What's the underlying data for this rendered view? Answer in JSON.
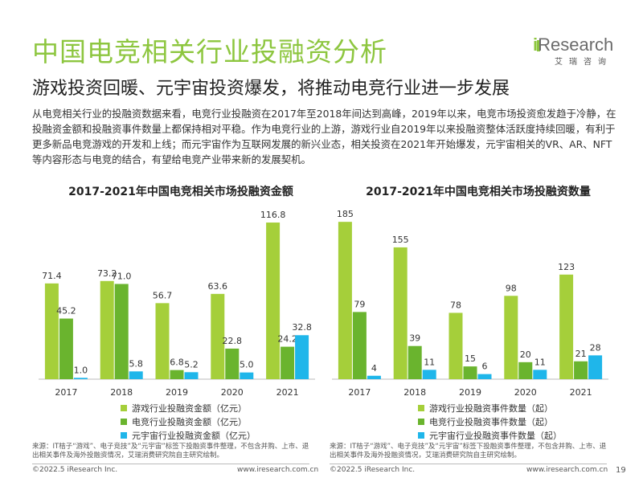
{
  "header": {
    "title": "中国电竞相关行业投融资分析",
    "subtitle": "游戏投资回暖、元宇宙投资爆发，将推动电竞行业进一步发展"
  },
  "logo": {
    "brand_i": "i",
    "brand_rest": "Research",
    "tagline": "艾瑞咨询"
  },
  "body_text": "从电竞相关行业的投融资数据来看，电竞行业投融资在2017年至2018年间达到高峰，2019年以来，电竞市场投资愈发趋于冷静，在投融资金额和投融资事件数量上都保持相对平稳。作为电竞行业的上游，游戏行业自2019年以来投融资整体活跃度持续回暖，有利于更多新品电竞游戏的开发和上线；而元宇宙作为互联网发展的新兴业态，相关投资在2021年开始爆发，元宇宙相关的VR、AR、NFT等内容形态与电竞的结合，有望给电竞产业带来新的发展契机。",
  "colors": {
    "green_light": "#a5cf3a",
    "green_dark": "#6ab42e",
    "cyan": "#1fb6ea",
    "title_green": "#8dc63f"
  },
  "chart_data": [
    {
      "type": "bar",
      "title": "2017-2021年中国电竞相关市场投融资金额",
      "categories": [
        "2017",
        "2018",
        "2019",
        "2020",
        "2021"
      ],
      "series": [
        {
          "name": "游戏行业投融资金额（亿元）",
          "values": [
            71.4,
            73.2,
            56.7,
            63.6,
            116.8
          ],
          "labels": [
            "71.4",
            "73.2",
            "56.7",
            "63.6",
            "116.8"
          ]
        },
        {
          "name": "电竞行业投融资金额（亿元）",
          "values": [
            45.2,
            71.0,
            6.8,
            22.8,
            24.2
          ],
          "labels": [
            "45.2",
            "71.0",
            "6.8",
            "22.8",
            "24.2"
          ]
        },
        {
          "name": "元宇宙行业投融资金额（亿元）",
          "values": [
            1.0,
            5.8,
            5.2,
            5.0,
            32.8
          ],
          "labels": [
            "1.0",
            "5.8",
            "5.2",
            "5.0",
            "32.8"
          ]
        }
      ],
      "ylim": [
        0,
        130
      ]
    },
    {
      "type": "bar",
      "title": "2017-2021年中国电竞相关市场投融资数量",
      "categories": [
        "2017",
        "2018",
        "2019",
        "2020",
        "2021"
      ],
      "series": [
        {
          "name": "游戏行业投融资事件数量（起）",
          "values": [
            185,
            155,
            78,
            98,
            123
          ],
          "labels": [
            "185",
            "155",
            "78",
            "98",
            "123"
          ]
        },
        {
          "name": "电竞行业投融资事件数量（起）",
          "values": [
            79,
            39,
            15,
            20,
            21
          ],
          "labels": [
            "79",
            "39",
            "15",
            "20",
            "21"
          ]
        },
        {
          "name": "元宇宙行业投融资事件数量（起）",
          "values": [
            4,
            11,
            6,
            11,
            28
          ],
          "labels": [
            "4",
            "11",
            "6",
            "11",
            "28"
          ]
        }
      ],
      "ylim": [
        0,
        205
      ]
    }
  ],
  "sources": [
    "来源：IT桔子“游戏”、电子竞技”及“元宇宙”标签下投融资事件整理，不包含并购、上市、退出相关事件及海外投融资情况，艾瑞消费研究院自主研究绘制。",
    "来源：IT桔子“游戏”、电子竞技”及“元宇宙”标签下投融资事件整理，不包含并购、上市、退出相关事件及海外投融资情况，艾瑞消费研究院自主研究绘制。"
  ],
  "footer": {
    "copyright_left": "©2022.5 iResearch Inc.",
    "url_left": "www.iresearch.com.cn",
    "copyright_right": "©2022.5 iResearch Inc.",
    "url_right": "www.iresearch.com.cn",
    "page_number": "19"
  }
}
